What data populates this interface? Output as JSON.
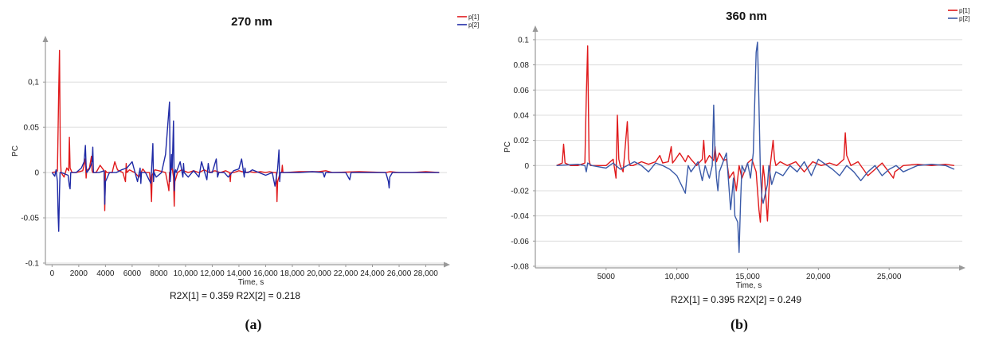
{
  "chart_data": [
    {
      "type": "line",
      "title": "270 nm",
      "xlabel": "Time, s",
      "ylabel": "PC",
      "footer": "R2X[1] = 0.359 R2X[2] = 0.218",
      "caption": "(a)",
      "xlim": [
        -200,
        29400
      ],
      "ylim": [
        -0.1,
        0.145
      ],
      "x_ticks": [
        0,
        2000,
        4000,
        6000,
        8000,
        10000,
        12000,
        14000,
        16000,
        18000,
        20000,
        22000,
        24000,
        26000,
        28000
      ],
      "x_tick_labels": [
        "0",
        "2000",
        "4000",
        "6000",
        "8000",
        "10,000",
        "12,000",
        "14,000",
        "16,000",
        "18,000",
        "20,000",
        "22,000",
        "24,000",
        "26,000",
        "28,000"
      ],
      "y_ticks": [
        -0.1,
        -0.05,
        0,
        0.05,
        0.1
      ],
      "y_tick_labels": [
        "-0.1",
        "-0.05",
        "0",
        "0.05",
        "0,1"
      ],
      "grid": "horizontal",
      "legend_position": "top-right",
      "series": [
        {
          "name": "p[1]",
          "color": "#e0191b",
          "x": [
            0,
            350,
            400,
            500,
            560,
            620,
            680,
            900,
            1100,
            1250,
            1300,
            1350,
            1500,
            1800,
            2300,
            2500,
            2550,
            2600,
            2800,
            2950,
            3000,
            3050,
            3300,
            3600,
            3900,
            3950,
            4000,
            4100,
            4500,
            4700,
            4900,
            5300,
            5500,
            5550,
            5600,
            5800,
            6200,
            6500,
            6800,
            7000,
            7300,
            7400,
            7450,
            7500,
            7700,
            8000,
            8500,
            8700,
            8750,
            8800,
            9000,
            9100,
            9150,
            9200,
            9400,
            9700,
            10200,
            10600,
            11000,
            11400,
            11800,
            12200,
            12600,
            13000,
            13300,
            13350,
            13400,
            13600,
            14000,
            14500,
            14800,
            15200,
            15600,
            16000,
            16300,
            16600,
            16800,
            16850,
            16900,
            17100,
            17200,
            17250,
            17300,
            17500,
            18500,
            20000,
            20500,
            21000,
            23000,
            25000,
            25300,
            26000,
            27000,
            28000,
            29000
          ],
          "y": [
            0,
            0.001,
            0.002,
            0.09,
            0.135,
            0.02,
            0,
            -0.005,
            0.005,
            0.002,
            0.039,
            0.005,
            0,
            0,
            0.002,
            0.015,
            -0.006,
            0.002,
            0.005,
            0.018,
            0.002,
            0,
            0,
            0.008,
            0.002,
            -0.042,
            0.002,
            0,
            0,
            0.012,
            0.003,
            0,
            -0.01,
            0.01,
            0,
            0.003,
            0,
            -0.005,
            0.004,
            0,
            0,
            -0.015,
            -0.032,
            -0.003,
            0.003,
            0.002,
            0,
            -0.015,
            -0.02,
            0,
            0.005,
            -0.005,
            -0.037,
            -0.01,
            0,
            0.003,
            0,
            0.002,
            0,
            0.003,
            0,
            0.002,
            0,
            0.002,
            0,
            -0.01,
            0,
            0,
            0.002,
            0,
            0.001,
            0,
            0.001,
            0,
            0.001,
            0,
            0,
            -0.032,
            -0.01,
            0,
            0,
            0.008,
            0,
            0,
            0.001,
            0.001,
            0.002,
            0,
            0.001,
            0,
            0.001,
            0,
            0,
            0.001,
            0
          ]
        },
        {
          "name": "p[2]",
          "color": "#1f2aa6",
          "x": [
            0,
            200,
            300,
            400,
            450,
            500,
            560,
            600,
            700,
            1200,
            1300,
            1350,
            1400,
            1800,
            2200,
            2400,
            2500,
            2550,
            2600,
            2800,
            3000,
            3050,
            3100,
            3500,
            3900,
            3950,
            4000,
            4300,
            4800,
            5200,
            5600,
            6000,
            6400,
            6600,
            6650,
            6700,
            7000,
            7400,
            7550,
            7600,
            7650,
            7800,
            8200,
            8500,
            8800,
            8850,
            8900,
            8950,
            9000,
            9100,
            9150,
            9200,
            9250,
            9300,
            9600,
            9800,
            9850,
            9900,
            10200,
            10600,
            11000,
            11200,
            11600,
            11700,
            11800,
            12000,
            12300,
            12400,
            12500,
            12900,
            13200,
            13600,
            14000,
            14200,
            14400,
            14450,
            14500,
            14700,
            15000,
            15500,
            16000,
            16500,
            16700,
            16900,
            17000,
            17050,
            17100,
            17200,
            17500,
            18500,
            19500,
            20300,
            20400,
            20500,
            21000,
            22000,
            22300,
            22400,
            23000,
            24000,
            25000,
            25200,
            25250,
            25300,
            25500,
            26000,
            27000,
            28000,
            29000
          ],
          "y": [
            0,
            -0.004,
            0.003,
            -0.01,
            -0.045,
            -0.065,
            -0.02,
            0,
            0,
            -0.003,
            -0.015,
            -0.018,
            0,
            0,
            0.005,
            0.012,
            0.03,
            0.008,
            0,
            0.004,
            0.012,
            0.028,
            0,
            0,
            0.002,
            -0.035,
            -0.01,
            0,
            0,
            0.003,
            0.005,
            0.012,
            -0.01,
            0.005,
            -0.012,
            0,
            0,
            -0.012,
            0.032,
            -0.01,
            0,
            -0.005,
            0,
            0.02,
            0.078,
            -0.01,
            0,
            0.02,
            0.005,
            0.057,
            -0.02,
            0,
            0.003,
            0,
            0.012,
            -0.005,
            0.01,
            0,
            -0.005,
            0.002,
            -0.005,
            0.012,
            -0.008,
            0.01,
            0,
            0,
            0.015,
            -0.005,
            0,
            0,
            -0.005,
            0.002,
            0.004,
            0.015,
            -0.005,
            0.005,
            0,
            0,
            0.003,
            0,
            -0.003,
            0,
            -0.015,
            0.004,
            0.025,
            -0.01,
            0,
            0,
            0,
            0,
            0.001,
            0,
            -0.005,
            0,
            0,
            0,
            -0.008,
            0,
            0,
            0,
            0,
            -0.01,
            -0.017,
            -0.005,
            0,
            0,
            0,
            0,
            0
          ]
        }
      ]
    },
    {
      "type": "line",
      "title": "360 nm",
      "xlabel": "Time, s",
      "ylabel": "PC",
      "footer": "R2X[1] = 0.395 R2X[2] = 0.249",
      "caption": "(b)",
      "xlim": [
        0,
        30000
      ],
      "ylim": [
        -0.08,
        0.105
      ],
      "x_ticks": [
        5000,
        10000,
        15000,
        20000,
        25000
      ],
      "x_tick_labels": [
        "5000",
        "10,000",
        "15,000",
        "20,000",
        "25,000"
      ],
      "y_ticks": [
        -0.08,
        -0.06,
        -0.04,
        -0.02,
        0,
        0.02,
        0.04,
        0.06,
        0.08,
        0.1
      ],
      "y_tick_labels": [
        "-0.08",
        "-0.06",
        "-0.04",
        "-0.02",
        "0",
        "0.02",
        "0.04",
        "0.06",
        "0.08",
        "0.1"
      ],
      "grid": "horizontal",
      "legend_position": "top-right",
      "series": [
        {
          "name": "p[1]",
          "color": "#e0191b",
          "x": [
            1500,
            1900,
            2000,
            2100,
            2500,
            3000,
            3500,
            3600,
            3700,
            3800,
            3900,
            4400,
            5000,
            5500,
            5700,
            5800,
            5900,
            6000,
            6200,
            6500,
            6600,
            6700,
            6900,
            7500,
            8000,
            8500,
            8800,
            9000,
            9400,
            9600,
            9700,
            9900,
            10200,
            10600,
            10800,
            11000,
            11400,
            11800,
            11900,
            12000,
            12300,
            12600,
            12700,
            12800,
            13000,
            13300,
            13500,
            13700,
            14000,
            14200,
            14300,
            14400,
            14600,
            15000,
            15300,
            15600,
            15800,
            15900,
            16100,
            16200,
            16400,
            16500,
            16600,
            16800,
            16900,
            17000,
            17300,
            17800,
            18400,
            19000,
            19600,
            20200,
            20800,
            21300,
            21800,
            21900,
            22000,
            22300,
            22800,
            23500,
            24500,
            25300,
            25400,
            26000,
            27000,
            28000,
            29000,
            29600
          ],
          "y": [
            0,
            0.002,
            0.017,
            0.002,
            0,
            0,
            0.002,
            0.055,
            0.095,
            0.004,
            0,
            0,
            0,
            0.005,
            -0.01,
            0.04,
            0.005,
            0,
            -0.005,
            0.035,
            0.005,
            0,
            0,
            0.003,
            0.001,
            0.003,
            0.008,
            0.002,
            0.003,
            0.015,
            0.002,
            0.005,
            0.01,
            0.003,
            0.008,
            0.005,
            0,
            0.005,
            0.02,
            0.002,
            0.008,
            0.004,
            0.015,
            0.003,
            0.01,
            0.004,
            0.005,
            -0.01,
            -0.005,
            -0.02,
            -0.01,
            0,
            -0.01,
            0.002,
            0.005,
            -0.005,
            -0.035,
            -0.045,
            0,
            -0.01,
            -0.044,
            -0.02,
            0,
            0.02,
            0.005,
            0,
            0.003,
            0,
            0.003,
            -0.005,
            0.003,
            0,
            0.002,
            0,
            0.005,
            0.026,
            0.008,
            0,
            0.003,
            -0.008,
            0.002,
            -0.01,
            -0.005,
            0,
            0.001,
            0,
            0.001,
            0
          ]
        },
        {
          "name": "p[2]",
          "color": "#3a5aa8",
          "x": [
            1500,
            3000,
            3500,
            3600,
            3700,
            4000,
            5000,
            5500,
            6000,
            6500,
            7000,
            7500,
            8000,
            8500,
            9000,
            9500,
            10000,
            10600,
            10700,
            10800,
            11000,
            11500,
            11800,
            12000,
            12300,
            12500,
            12600,
            12700,
            12800,
            12900,
            13000,
            13500,
            13700,
            13800,
            14000,
            14100,
            14300,
            14400,
            14500,
            14600,
            14800,
            15000,
            15200,
            15400,
            15600,
            15700,
            15800,
            15900,
            16000,
            16100,
            16400,
            16500,
            16700,
            17000,
            17500,
            18000,
            18500,
            19000,
            19500,
            20000,
            21000,
            21500,
            22000,
            22500,
            23000,
            23500,
            24000,
            24500,
            25000,
            25500,
            26000,
            27000,
            28000,
            29000,
            29600
          ],
          "y": [
            0,
            0.001,
            0,
            -0.005,
            0.002,
            0,
            -0.002,
            0.002,
            -0.003,
            0,
            0.003,
            0,
            -0.005,
            0.002,
            0,
            -0.003,
            -0.008,
            -0.022,
            -0.01,
            0,
            -0.005,
            0.003,
            -0.012,
            0,
            -0.01,
            0,
            0.048,
            0.01,
            -0.01,
            -0.02,
            -0.005,
            0.01,
            -0.02,
            -0.035,
            -0.01,
            -0.04,
            -0.045,
            -0.069,
            -0.03,
            0,
            -0.005,
            0.002,
            -0.01,
            0.01,
            0.09,
            0.098,
            0.05,
            -0.005,
            -0.025,
            -0.03,
            -0.015,
            0,
            -0.015,
            -0.005,
            -0.008,
            0,
            -0.005,
            0.003,
            -0.008,
            0.005,
            -0.003,
            -0.008,
            0,
            -0.005,
            -0.012,
            -0.005,
            0,
            -0.008,
            -0.003,
            0,
            -0.005,
            0,
            0.001,
            0,
            -0.003
          ]
        }
      ]
    }
  ]
}
